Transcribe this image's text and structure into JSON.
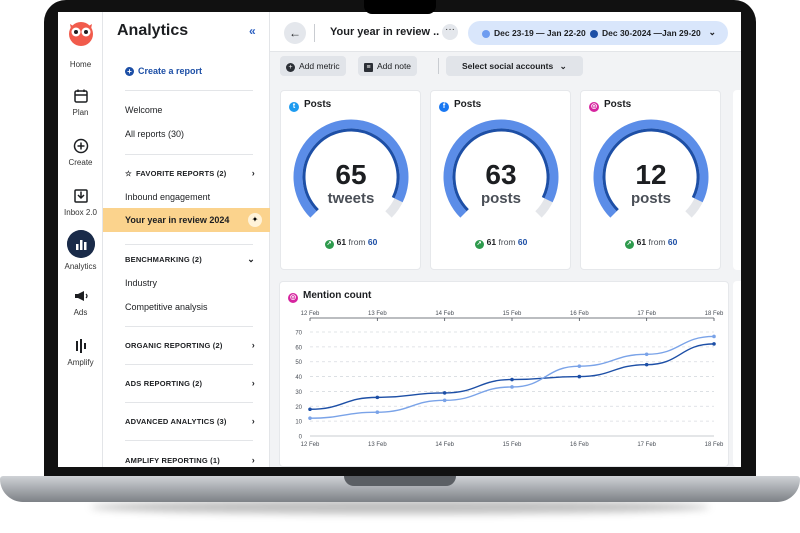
{
  "rail": {
    "items": [
      {
        "label": "Home",
        "icon": "home-owl-icon"
      },
      {
        "label": "Plan",
        "icon": "calendar-icon"
      },
      {
        "label": "Create",
        "icon": "plus-circle-icon"
      },
      {
        "label": "Inbox 2.0",
        "icon": "inbox-icon"
      },
      {
        "label": "Analytics",
        "icon": "bar-chart-icon"
      },
      {
        "label": "Ads",
        "icon": "megaphone-icon"
      },
      {
        "label": "Amplify",
        "icon": "amplify-icon"
      }
    ]
  },
  "sidebar": {
    "title": "Analytics",
    "collapse_glyph": "«",
    "create_label": "Create a report",
    "welcome": "Welcome",
    "all_reports": "All reports (30)",
    "favorites": "FAVORITE REPORTS (2)",
    "inbound": "Inbound engagement",
    "active_report": "Your year in review 2024",
    "benchmarking": "BENCHMARKING (2)",
    "industry": "Industry",
    "competitive": "Competitive analysis",
    "organic": "ORGANIC REPORTING (2)",
    "ads": "ADS REPORTING (2)",
    "advanced": "ADVANCED ANALYTICS (3)",
    "amplify": "AMPLIFY REPORTING (1)"
  },
  "topbar": {
    "back_glyph": "←",
    "report_title": "Your year in review ..",
    "more_glyph": "···",
    "date_range_a": "Dec 23-19 — Jan 22-20",
    "date_range_b": "Dec 30-2024 —Jan 29-20",
    "date_a_color": "#6e9cf0",
    "date_b_color": "#1d4fa6"
  },
  "toolbar": {
    "add_metric": "Add metric",
    "add_note": "Add note",
    "select_accounts": "Select social accounts"
  },
  "cards": [
    {
      "title": "Posts",
      "network": "twitter",
      "icon_color": "#1d9bf0",
      "value": "65",
      "unit": "tweets",
      "current": "61",
      "from_label": "from",
      "previous": "60",
      "fill": 0.93
    },
    {
      "title": "Posts",
      "network": "facebook",
      "icon_color": "#1877f2",
      "value": "63",
      "unit": "posts",
      "current": "61",
      "from_label": "from",
      "previous": "60",
      "fill": 0.93
    },
    {
      "title": "Posts",
      "network": "instagram",
      "icon_color": "#d6249f",
      "value": "12",
      "unit": "posts",
      "current": "61",
      "from_label": "from",
      "previous": "60",
      "fill": 0.93
    }
  ],
  "mention": {
    "title": "Mention count",
    "network": "instagram",
    "icon_color": "#d6249f"
  },
  "chart_data": {
    "type": "line",
    "title": "Mention count",
    "x": [
      "12 Feb",
      "13 Feb",
      "14 Feb",
      "15 Feb",
      "16 Feb",
      "17 Feb",
      "18 Feb"
    ],
    "ylim": [
      0,
      70
    ],
    "yticks": [
      0,
      10,
      20,
      30,
      40,
      50,
      60,
      70
    ],
    "grid": true,
    "series": [
      {
        "color": "#1d4fa6",
        "values": [
          18,
          26,
          29,
          38,
          40,
          48,
          62
        ]
      },
      {
        "color": "#7aa3e8",
        "values": [
          12,
          16,
          24,
          33,
          47,
          55,
          67
        ]
      }
    ]
  }
}
